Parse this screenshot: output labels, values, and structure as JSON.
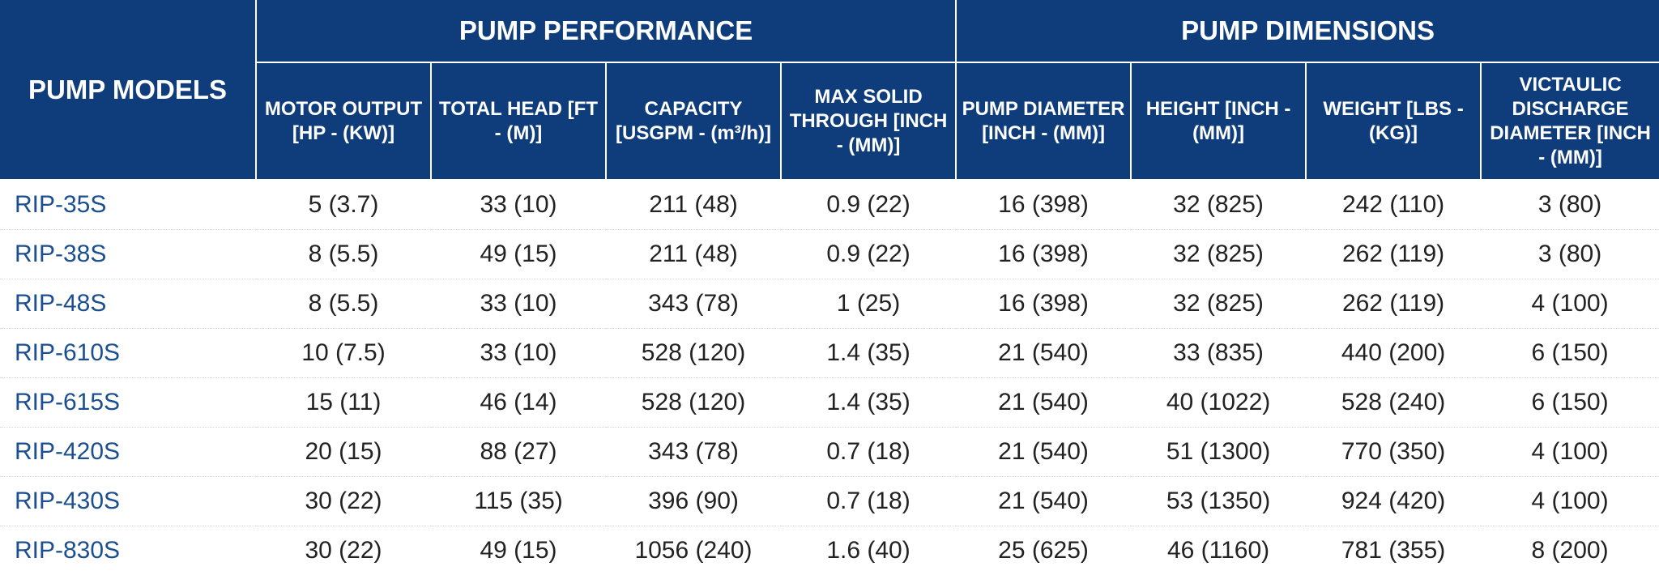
{
  "header": {
    "models_label": "PUMP MODELS",
    "groups": [
      "PUMP PERFORMANCE",
      "PUMP DIMENSIONS"
    ],
    "columns": [
      "MOTOR OUTPUT [HP - (KW)]",
      "TOTAL HEAD [FT - (M)]",
      "CAPACITY [USGPM - (m³/h)]",
      "MAX SOLID THROUGH [INCH - (MM)]",
      "PUMP DIAMETER [INCH - (MM)]",
      "HEIGHT [INCH - (MM)]",
      "WEIGHT [LBS - (KG)]",
      "VICTAULIC DISCHARGE DIAMETER [INCH - (MM)]"
    ]
  },
  "rows": [
    {
      "model": "RIP-35S",
      "cells": [
        "5 (3.7)",
        "33 (10)",
        "211 (48)",
        "0.9 (22)",
        "16 (398)",
        "32 (825)",
        "242 (110)",
        "3 (80)"
      ]
    },
    {
      "model": "RIP-38S",
      "cells": [
        "8 (5.5)",
        "49 (15)",
        "211 (48)",
        "0.9 (22)",
        "16 (398)",
        "32 (825)",
        "262 (119)",
        "3 (80)"
      ]
    },
    {
      "model": "RIP-48S",
      "cells": [
        "8 (5.5)",
        "33 (10)",
        "343 (78)",
        "1 (25)",
        "16 (398)",
        "32 (825)",
        "262 (119)",
        "4 (100)"
      ]
    },
    {
      "model": "RIP-610S",
      "cells": [
        "10 (7.5)",
        "33 (10)",
        "528 (120)",
        "1.4 (35)",
        "21 (540)",
        "33 (835)",
        "440 (200)",
        "6 (150)"
      ]
    },
    {
      "model": "RIP-615S",
      "cells": [
        "15 (11)",
        "46 (14)",
        "528 (120)",
        "1.4 (35)",
        "21 (540)",
        "40 (1022)",
        "528 (240)",
        "6 (150)"
      ]
    },
    {
      "model": "RIP-420S",
      "cells": [
        "20 (15)",
        "88 (27)",
        "343 (78)",
        "0.7 (18)",
        "21 (540)",
        "51 (1300)",
        "770 (350)",
        "4 (100)"
      ]
    },
    {
      "model": "RIP-430S",
      "cells": [
        "30 (22)",
        "115 (35)",
        "396 (90)",
        "0.7 (18)",
        "21 (540)",
        "53 (1350)",
        "924 (420)",
        "4 (100)"
      ]
    },
    {
      "model": "RIP-830S",
      "cells": [
        "30 (22)",
        "49 (15)",
        "1056 (240)",
        "1.6 (40)",
        "25 (625)",
        "46 (1160)",
        "781 (355)",
        "8 (200)"
      ]
    }
  ]
}
